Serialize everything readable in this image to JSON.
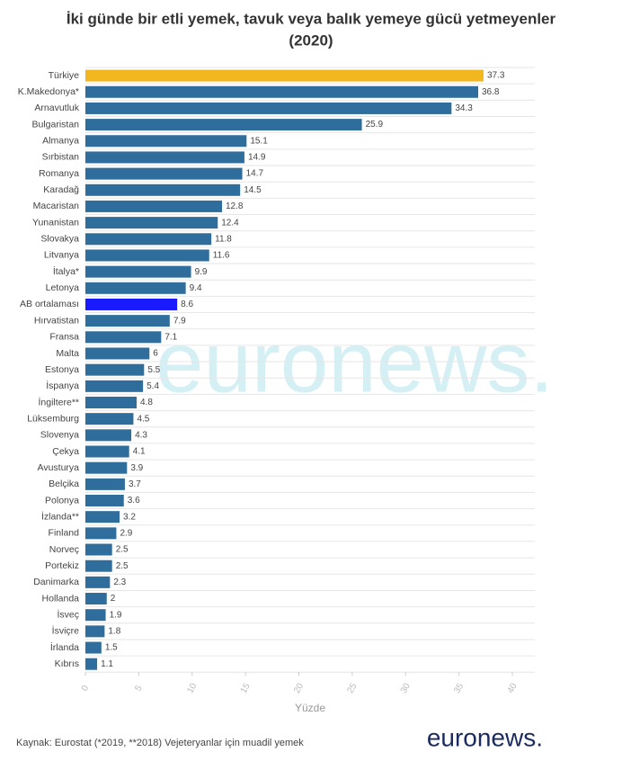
{
  "chart_data": {
    "type": "hbar",
    "title": "İki günde bir etli yemek, tavuk veya balık yemeye gücü yetmeyenler",
    "subtitle": "(2020)",
    "categories": [
      "Türkiye",
      "K.Makedonya*",
      "Arnavutluk",
      "Bulgaristan",
      "Almanya",
      "Sırbistan",
      "Romanya",
      "Karadağ",
      "Macaristan",
      "Yunanistan",
      "Slovakya",
      "Litvanya",
      "İtalya*",
      "Letonya",
      "AB ortalaması",
      "Hırvatistan",
      "Fransa",
      "Malta",
      "Estonya",
      "İspanya",
      "İngiltere**",
      "Lüksemburg",
      "Slovenya",
      "Çekya",
      "Avusturya",
      "Belçika",
      "Polonya",
      "İzlanda**",
      "Finland",
      "Norveç",
      "Portekiz",
      "Danimarka",
      "Hollanda",
      "İsveç",
      "İsviçre",
      "İrlanda",
      "Kıbrıs"
    ],
    "values": [
      37.3,
      36.8,
      34.3,
      25.9,
      15.1,
      14.9,
      14.7,
      14.5,
      12.8,
      12.4,
      11.8,
      11.6,
      9.9,
      9.4,
      8.6,
      7.9,
      7.1,
      6,
      5.5,
      5.4,
      4.8,
      4.5,
      4.3,
      4.1,
      3.9,
      3.7,
      3.6,
      3.2,
      2.9,
      2.5,
      2.5,
      2.3,
      2,
      1.9,
      1.8,
      1.5,
      1.1
    ],
    "colors": [
      "#f2b61f",
      "#2f6e9c",
      "#2f6e9c",
      "#2f6e9c",
      "#2f6e9c",
      "#2f6e9c",
      "#2f6e9c",
      "#2f6e9c",
      "#2f6e9c",
      "#2f6e9c",
      "#2f6e9c",
      "#2f6e9c",
      "#2f6e9c",
      "#2f6e9c",
      "#1a1aff",
      "#2f6e9c",
      "#2f6e9c",
      "#2f6e9c",
      "#2f6e9c",
      "#2f6e9c",
      "#2f6e9c",
      "#2f6e9c",
      "#2f6e9c",
      "#2f6e9c",
      "#2f6e9c",
      "#2f6e9c",
      "#2f6e9c",
      "#2f6e9c",
      "#2f6e9c",
      "#2f6e9c",
      "#2f6e9c",
      "#2f6e9c",
      "#2f6e9c",
      "#2f6e9c",
      "#2f6e9c",
      "#2f6e9c",
      "#2f6e9c"
    ],
    "xlim": [
      0,
      40
    ],
    "xticks": [
      0,
      5,
      10,
      15,
      20,
      25,
      30,
      35,
      40
    ],
    "xlabel": "Yüzde",
    "source": "Kaynak: Eurostat (*2019, **2018) Vejeteryanlar için muadil yemek",
    "logo": "euronews.",
    "watermark": "euronews."
  }
}
